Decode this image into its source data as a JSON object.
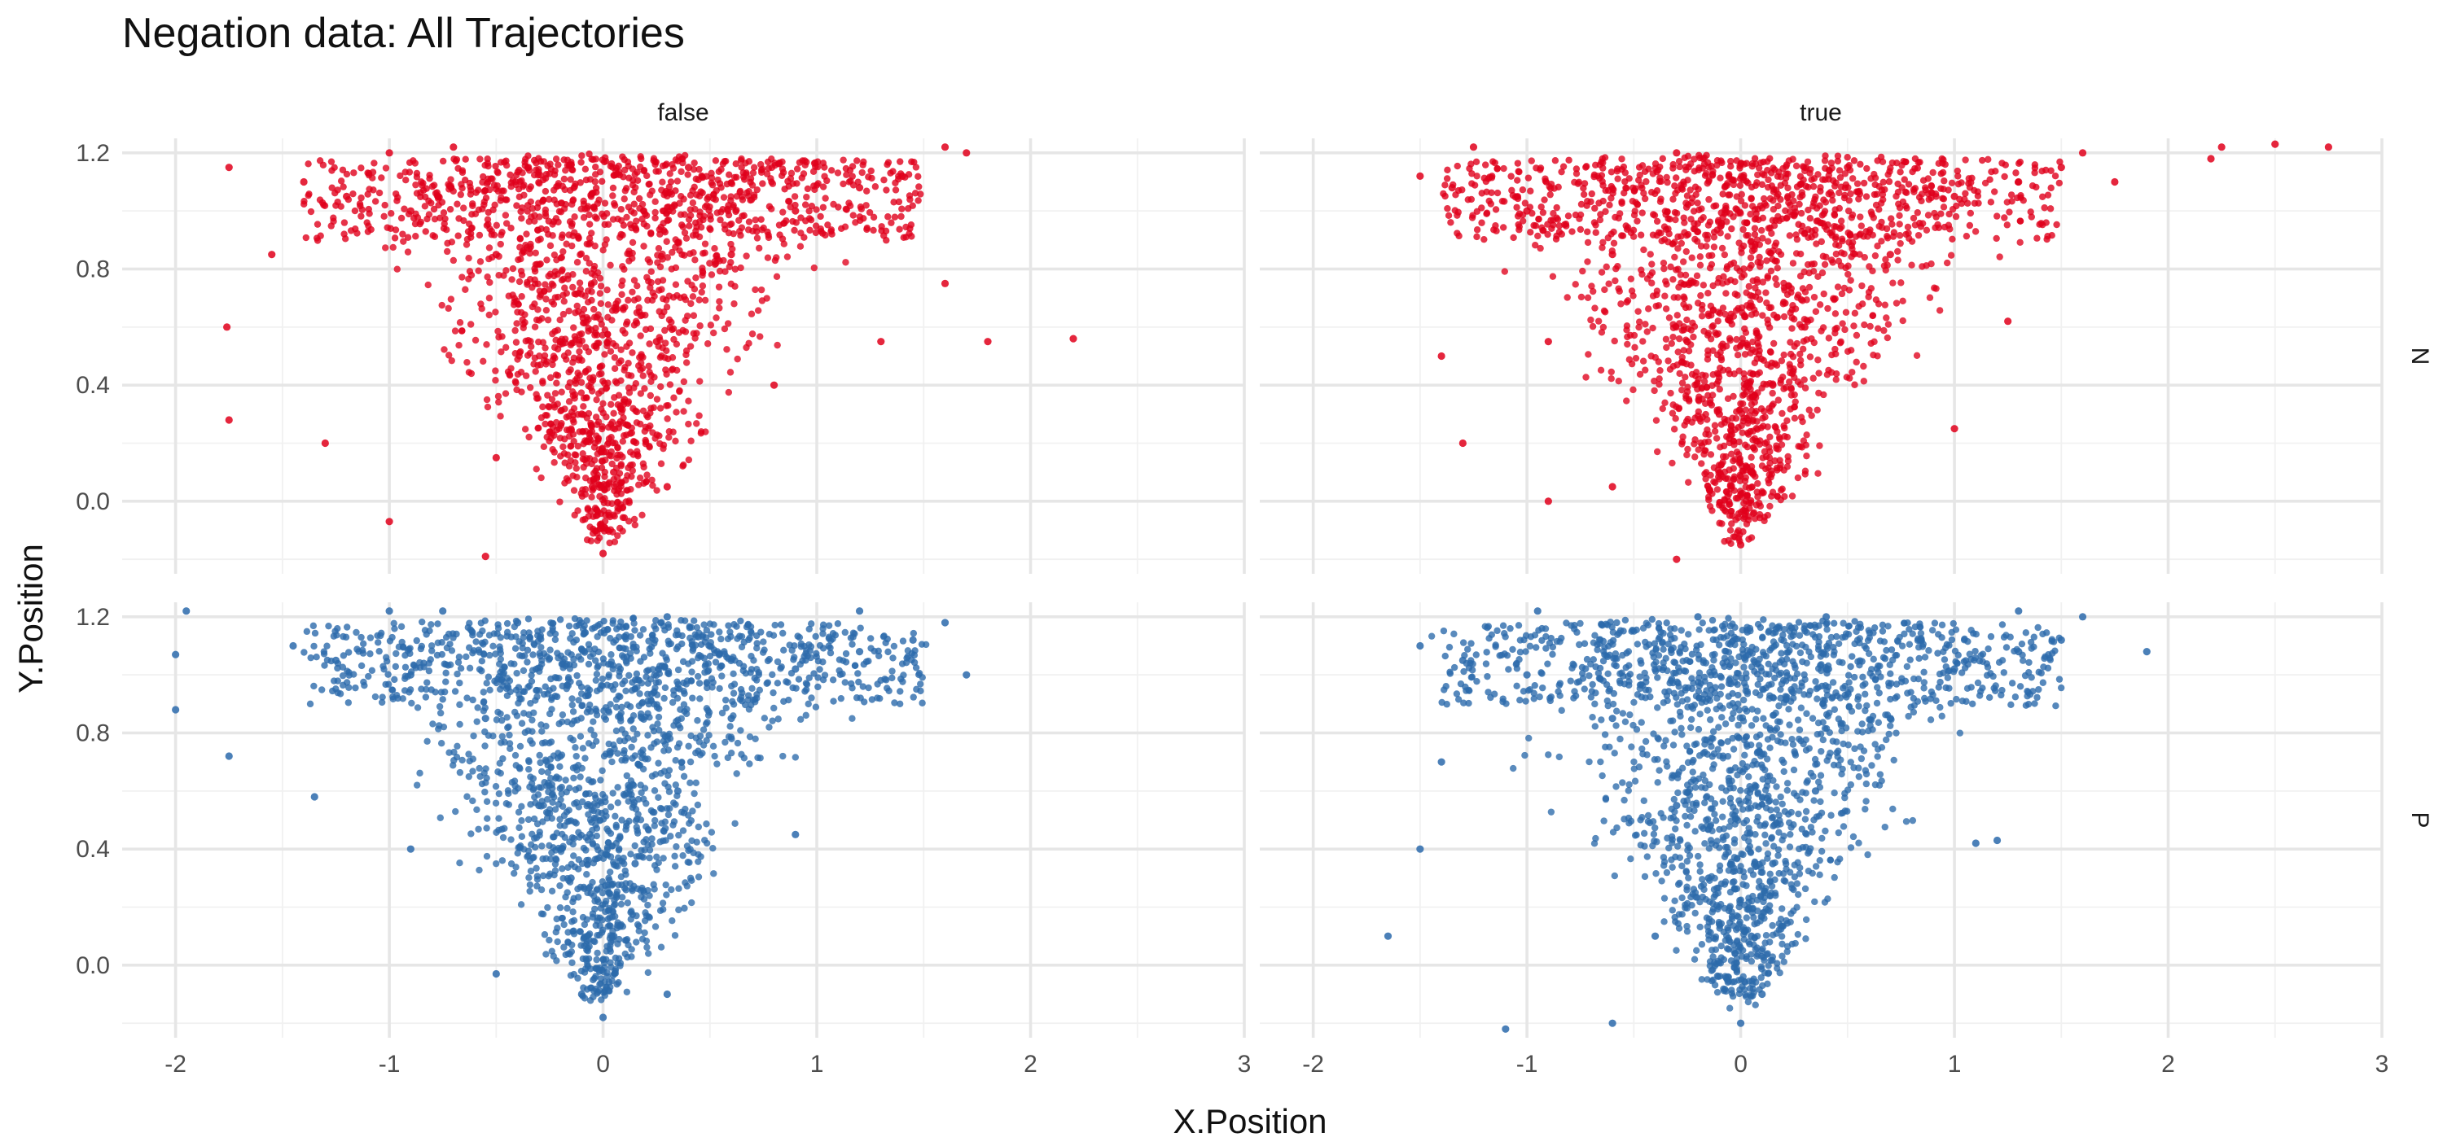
{
  "chart_data": {
    "type": "scatter",
    "title": "Negation data: All Trajectories",
    "xlabel": "X.Position",
    "ylabel": "Y.Position",
    "xlim": [
      -2.25,
      3.0
    ],
    "ylim": [
      -0.25,
      1.25
    ],
    "x_ticks": [
      "-2",
      "-1",
      "0",
      "1",
      "2",
      "3"
    ],
    "y_ticks": [
      "0.0",
      "0.4",
      "0.8",
      "1.2"
    ],
    "x_tick_values": [
      -2,
      -1,
      0,
      1,
      2,
      3
    ],
    "y_tick_values": [
      0.0,
      0.4,
      0.8,
      1.2
    ],
    "grid": true,
    "legend": "none",
    "facet_cols": [
      "false",
      "true"
    ],
    "facet_rows": [
      "N",
      "P"
    ],
    "colors": {
      "N": "#e0001b",
      "P": "#2c6aab"
    },
    "panels": [
      {
        "col": "false",
        "row": "N",
        "points": [
          [
            0,
            -0.18
          ],
          [
            -0.05,
            0.05
          ],
          [
            0.05,
            0.1
          ],
          [
            -0.1,
            0.3
          ],
          [
            0.1,
            0.35
          ],
          [
            -0.2,
            0.55
          ],
          [
            0.25,
            0.55
          ],
          [
            -0.5,
            0.85
          ],
          [
            0.6,
            0.85
          ],
          [
            -0.9,
            1.0
          ],
          [
            0.9,
            1.0
          ],
          [
            -1.2,
            1.05
          ],
          [
            1.2,
            1.08
          ],
          [
            -1.4,
            1.1
          ],
          [
            1.4,
            1.12
          ],
          [
            -1.0,
            1.2
          ],
          [
            -0.7,
            1.22
          ],
          [
            1.6,
            1.22
          ],
          [
            1.7,
            1.2
          ],
          [
            -1.75,
            1.15
          ],
          [
            -1.76,
            0.6
          ],
          [
            -1.75,
            0.28
          ],
          [
            -1.0,
            -0.07
          ],
          [
            -0.5,
            0.15
          ],
          [
            0.3,
            0.05
          ],
          [
            0.8,
            0.4
          ],
          [
            1.3,
            0.55
          ],
          [
            1.8,
            0.55
          ],
          [
            2.2,
            0.56
          ],
          [
            1.6,
            0.75
          ],
          [
            -0.55,
            -0.19
          ],
          [
            -1.3,
            0.2
          ],
          [
            -1.55,
            0.85
          ],
          [
            -0.35,
            1.15
          ],
          [
            0.4,
            1.15
          ]
        ]
      },
      {
        "col": "true",
        "row": "N",
        "points": [
          [
            0,
            -0.15
          ],
          [
            -0.3,
            -0.2
          ],
          [
            0.05,
            0.1
          ],
          [
            -0.1,
            0.3
          ],
          [
            0.15,
            0.4
          ],
          [
            -0.25,
            0.55
          ],
          [
            0.3,
            0.6
          ],
          [
            -0.6,
            0.85
          ],
          [
            0.7,
            0.85
          ],
          [
            -1.0,
            1.0
          ],
          [
            1.0,
            1.05
          ],
          [
            -1.35,
            1.08
          ],
          [
            1.3,
            1.1
          ],
          [
            -1.5,
            1.12
          ],
          [
            1.5,
            1.15
          ],
          [
            -1.25,
            1.22
          ],
          [
            1.6,
            1.2
          ],
          [
            1.75,
            1.1
          ],
          [
            2.2,
            1.18
          ],
          [
            2.25,
            1.22
          ],
          [
            2.5,
            1.23
          ],
          [
            2.75,
            1.22
          ],
          [
            -1.3,
            0.2
          ],
          [
            -0.9,
            0.0
          ],
          [
            -0.6,
            0.05
          ],
          [
            1.25,
            0.62
          ],
          [
            1.0,
            0.25
          ],
          [
            -1.4,
            0.5
          ],
          [
            -0.9,
            0.55
          ],
          [
            0.5,
            1.15
          ],
          [
            -0.3,
            1.2
          ]
        ]
      },
      {
        "col": "false",
        "row": "P",
        "points": [
          [
            0,
            -0.18
          ],
          [
            -0.1,
            -0.1
          ],
          [
            0.05,
            0.1
          ],
          [
            -0.15,
            0.3
          ],
          [
            0.15,
            0.35
          ],
          [
            -0.3,
            0.55
          ],
          [
            0.35,
            0.6
          ],
          [
            -0.55,
            0.85
          ],
          [
            0.6,
            0.85
          ],
          [
            -0.9,
            1.0
          ],
          [
            0.9,
            1.02
          ],
          [
            -1.25,
            1.05
          ],
          [
            1.2,
            1.08
          ],
          [
            -1.45,
            1.1
          ],
          [
            1.45,
            1.12
          ],
          [
            -1.0,
            1.22
          ],
          [
            -0.75,
            1.22
          ],
          [
            1.2,
            1.22
          ],
          [
            1.6,
            1.18
          ],
          [
            1.7,
            1.0
          ],
          [
            -1.95,
            1.22
          ],
          [
            -2.0,
            1.07
          ],
          [
            -2.0,
            0.88
          ],
          [
            -1.75,
            0.72
          ],
          [
            -1.35,
            0.58
          ],
          [
            -0.5,
            -0.03
          ],
          [
            0.3,
            -0.1
          ],
          [
            -0.9,
            0.4
          ],
          [
            0.9,
            0.45
          ],
          [
            -0.4,
            1.18
          ],
          [
            0.3,
            1.2
          ]
        ]
      },
      {
        "col": "true",
        "row": "P",
        "points": [
          [
            0,
            -0.2
          ],
          [
            0.1,
            -0.1
          ],
          [
            0.05,
            0.1
          ],
          [
            -0.15,
            0.3
          ],
          [
            0.15,
            0.35
          ],
          [
            -0.3,
            0.55
          ],
          [
            0.35,
            0.6
          ],
          [
            -0.6,
            0.85
          ],
          [
            0.7,
            0.85
          ],
          [
            -1.0,
            1.0
          ],
          [
            1.0,
            1.02
          ],
          [
            -1.3,
            1.05
          ],
          [
            1.3,
            1.08
          ],
          [
            -1.5,
            1.1
          ],
          [
            1.5,
            1.12
          ],
          [
            -0.95,
            1.22
          ],
          [
            1.3,
            1.22
          ],
          [
            1.6,
            1.2
          ],
          [
            1.9,
            1.08
          ],
          [
            -1.65,
            0.1
          ],
          [
            -1.5,
            0.4
          ],
          [
            -1.1,
            -0.22
          ],
          [
            -0.6,
            -0.2
          ],
          [
            -0.4,
            0.1
          ],
          [
            1.1,
            0.42
          ],
          [
            1.2,
            0.43
          ],
          [
            -0.2,
            1.2
          ],
          [
            0.4,
            1.2
          ],
          [
            -1.4,
            0.7
          ]
        ]
      }
    ]
  }
}
